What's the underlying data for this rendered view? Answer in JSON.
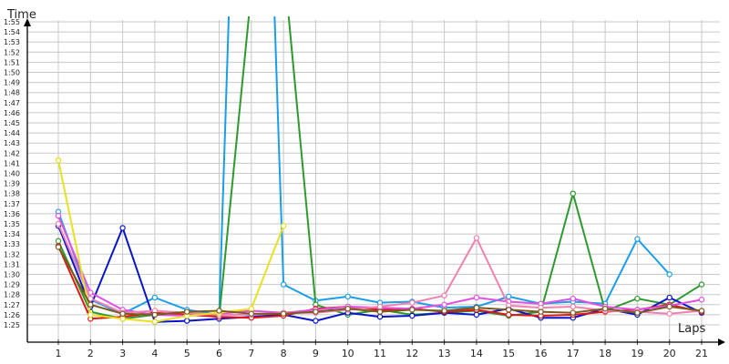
{
  "chart_data": {
    "type": "line",
    "title": "",
    "xlabel": "Laps",
    "ylabel": "Time",
    "grid": true,
    "x": [
      1,
      2,
      3,
      4,
      5,
      6,
      7,
      8,
      9,
      10,
      11,
      12,
      13,
      14,
      15,
      16,
      17,
      18,
      19,
      20,
      21
    ],
    "y_ticks": [
      "1:25",
      "1:26",
      "1:27",
      "1:28",
      "1:29",
      "1:30",
      "1:31",
      "1:32",
      "1:33",
      "1:34",
      "1:35",
      "1:36",
      "1:37",
      "1:38",
      "1:39",
      "1:40",
      "1:41",
      "1:42",
      "1:43",
      "1:44",
      "1:45",
      "1:46",
      "1:47",
      "1:48",
      "1:49",
      "1:50",
      "1:51",
      "1:52",
      "1:53",
      "1:54",
      "1:55"
    ],
    "ylim_seconds": [
      84,
      177
    ],
    "series": [
      {
        "color": "#1a9ee8",
        "values_seconds": [
          96.2,
          87.5,
          86.1,
          87.7,
          86.5,
          86.0,
          185,
          89.0,
          87.4,
          87.8,
          87.2,
          87.3,
          86.7,
          86.8,
          87.8,
          87.1,
          87.3,
          87.1,
          93.5,
          90.0,
          null
        ]
      },
      {
        "color": "#2e9a2e",
        "values_seconds": [
          93.3,
          86.3,
          85.6,
          86.0,
          86.2,
          85.8,
          118.0,
          121.0,
          87.0,
          86.0,
          86.5,
          86.0,
          86.2,
          86.4,
          85.9,
          86.3,
          98.0,
          86.4,
          87.6,
          87.0,
          89.0
        ]
      },
      {
        "color": "#0a14c8",
        "values_seconds": [
          94.8,
          86.8,
          94.6,
          85.3,
          85.4,
          85.6,
          85.8,
          86.0,
          85.4,
          86.2,
          85.8,
          85.9,
          86.2,
          86.0,
          86.6,
          85.7,
          85.7,
          86.6,
          86.0,
          87.7,
          86.2
        ]
      },
      {
        "color": "#e01818",
        "values_seconds": [
          92.8,
          85.6,
          85.8,
          86.2,
          86.0,
          85.8,
          85.7,
          85.9,
          86.6,
          86.8,
          86.5,
          86.6,
          86.3,
          86.5,
          86.0,
          85.9,
          86.0,
          86.3,
          86.5,
          87.0,
          86.3
        ]
      },
      {
        "color": "#e050e0",
        "values_seconds": [
          95.8,
          88.2,
          86.5,
          86.0,
          85.9,
          86.1,
          86.4,
          86.2,
          86.5,
          86.8,
          86.7,
          86.6,
          87.0,
          87.7,
          87.3,
          87.1,
          87.6,
          86.8,
          86.5,
          86.9,
          87.5
        ]
      },
      {
        "color": "#f080b0",
        "values_seconds": [
          95.0,
          87.6,
          86.2,
          86.4,
          86.2,
          86.0,
          86.0,
          86.2,
          86.2,
          86.5,
          86.8,
          87.2,
          87.9,
          93.6,
          86.9,
          86.7,
          86.8,
          86.4,
          86.3,
          86.1,
          86.4
        ]
      },
      {
        "color": "#e8e020",
        "values_seconds": [
          101.3,
          86.0,
          85.6,
          85.3,
          85.9,
          86.2,
          86.6,
          94.8,
          null,
          null,
          null,
          null,
          null,
          null,
          null,
          null,
          null,
          null,
          null,
          null,
          null
        ]
      },
      {
        "color": "#7a5a1e",
        "values_seconds": [
          92.7,
          87.0,
          86.1,
          86.0,
          86.3,
          86.4,
          86.1,
          86.1,
          86.3,
          86.6,
          86.3,
          86.5,
          86.4,
          86.7,
          86.5,
          86.3,
          86.2,
          86.6,
          86.2,
          86.8,
          86.4
        ]
      }
    ]
  }
}
